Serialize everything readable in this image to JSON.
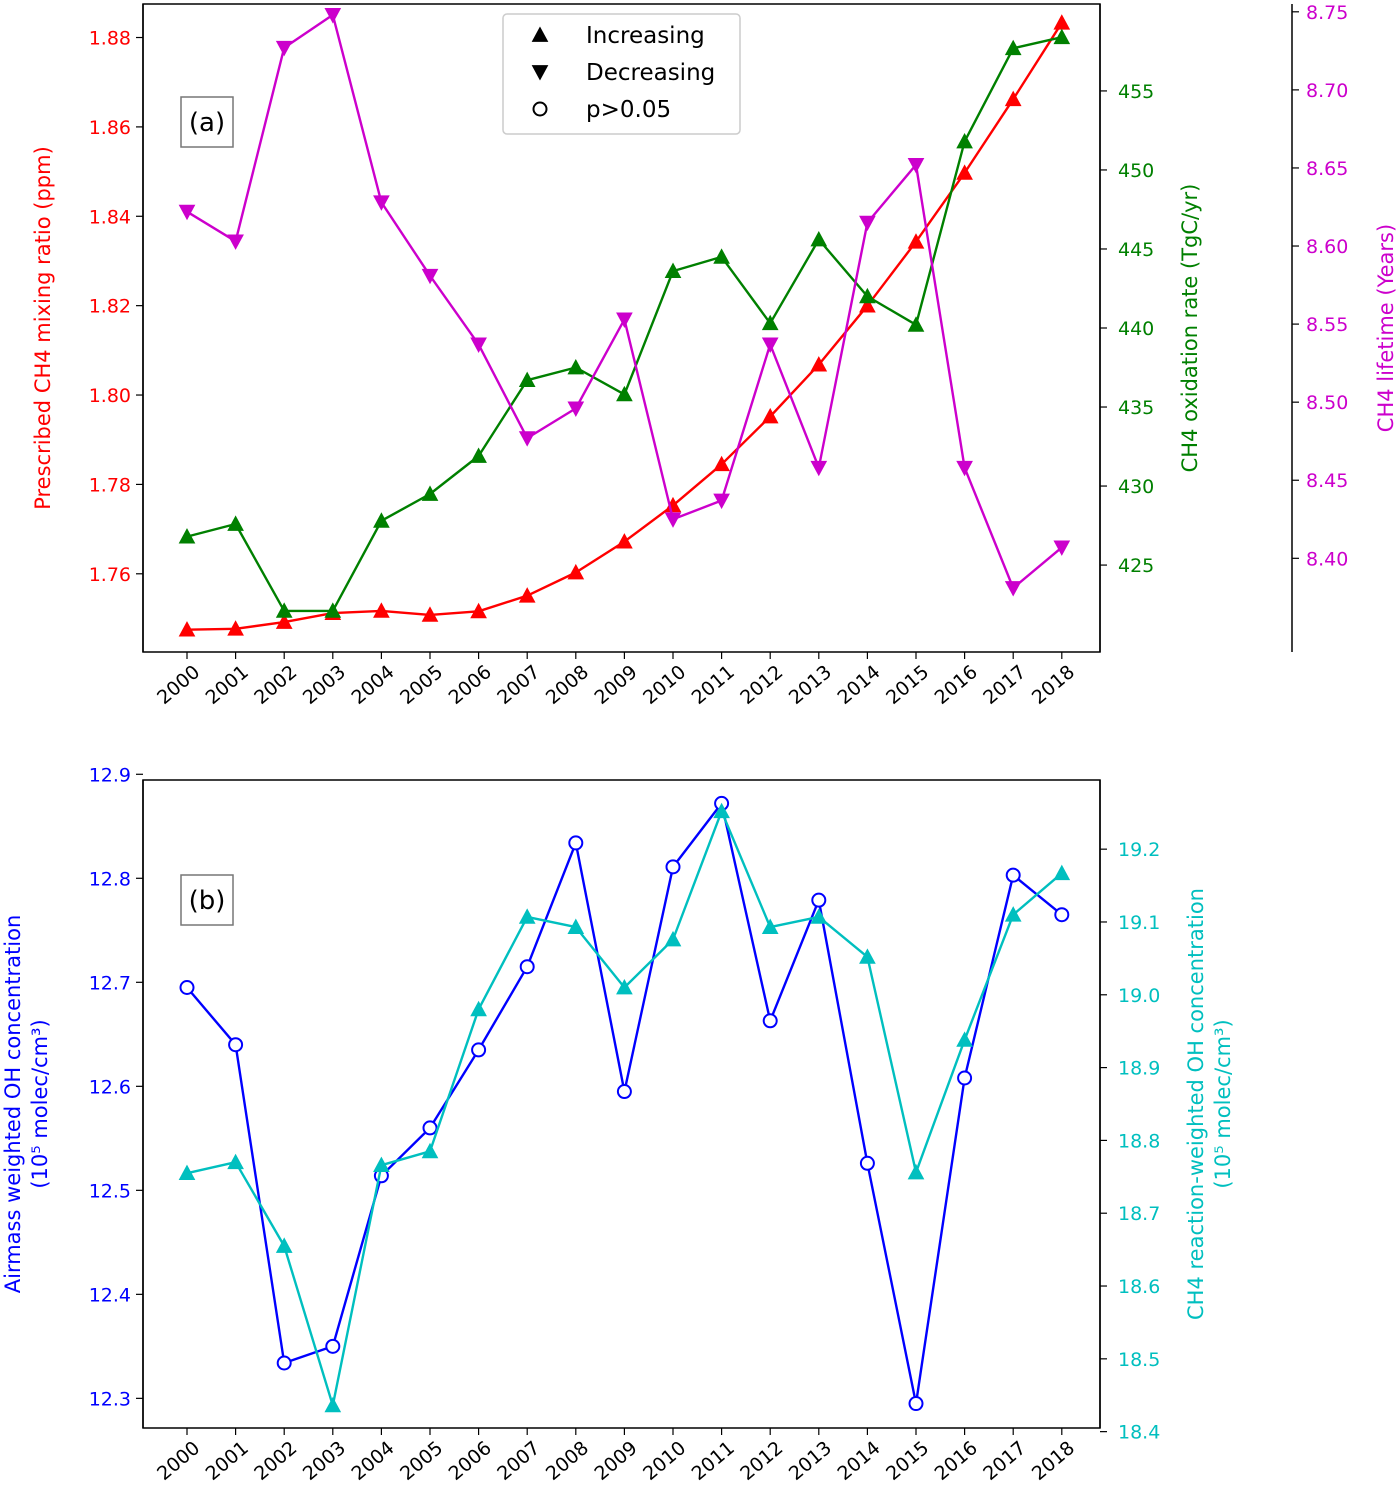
{
  "chart_data": [
    {
      "panel_label": "(a)",
      "type": "line",
      "categories": [
        "2000",
        "2001",
        "2002",
        "2003",
        "2004",
        "2005",
        "2006",
        "2007",
        "2008",
        "2009",
        "2010",
        "2011",
        "2012",
        "2013",
        "2014",
        "2015",
        "2016",
        "2017",
        "2018"
      ],
      "axes": {
        "left": {
          "label": "Prescribed CH4 mixing ratio (ppm)",
          "color": "#ff0000",
          "ylim": [
            1.7425,
            1.8875
          ],
          "ticks": [
            1.76,
            1.78,
            1.8,
            1.82,
            1.84,
            1.86,
            1.88
          ],
          "tick_labels": [
            "1.76",
            "1.78",
            "1.80",
            "1.82",
            "1.84",
            "1.86",
            "1.88"
          ]
        },
        "right": {
          "label": "CH4 oxidation rate (TgC/yr)",
          "color": "#008000",
          "ylim": [
            419.5,
            460.5
          ],
          "ticks": [
            425,
            430,
            435,
            440,
            445,
            450,
            455
          ],
          "tick_labels": [
            "425",
            "430",
            "435",
            "440",
            "445",
            "450",
            "455"
          ]
        },
        "right2": {
          "label": "CH4 lifetime (Years)",
          "color": "#cc00cc",
          "ylim": [
            8.34,
            8.755
          ],
          "ticks": [
            8.4,
            8.45,
            8.5,
            8.55,
            8.6,
            8.65,
            8.7,
            8.75
          ],
          "tick_labels": [
            "8.40",
            "8.45",
            "8.50",
            "8.55",
            "8.60",
            "8.65",
            "8.70",
            "8.75"
          ]
        }
      },
      "series": [
        {
          "axis": "left",
          "color": "#ff0000",
          "marker": "triangle-up",
          "values": [
            1.7475,
            1.7477,
            1.7492,
            1.7512,
            1.7517,
            1.7508,
            1.7516,
            1.7551,
            1.7603,
            1.7672,
            1.7753,
            1.7845,
            1.7952,
            1.8068,
            1.82,
            1.8343,
            1.8497,
            1.8662,
            1.8833
          ]
        },
        {
          "axis": "right",
          "color": "#008000",
          "marker": "triangle-up",
          "values": [
            426.8,
            427.6,
            422.1,
            422.1,
            427.8,
            429.5,
            431.9,
            436.7,
            437.5,
            435.8,
            443.6,
            444.5,
            440.3,
            445.6,
            442.0,
            440.2,
            451.8,
            457.7,
            458.4
          ]
        },
        {
          "axis": "right2",
          "color": "#cc00cc",
          "marker": "triangle-down",
          "values": [
            8.622,
            8.603,
            8.727,
            8.748,
            8.628,
            8.581,
            8.537,
            8.477,
            8.496,
            8.553,
            8.425,
            8.437,
            8.537,
            8.458,
            8.615,
            8.652,
            8.458,
            8.381,
            8.407
          ]
        }
      ],
      "legend": {
        "placement": "top-center",
        "entries": [
          {
            "marker": "triangle-up",
            "label": "Increasing"
          },
          {
            "marker": "triangle-down",
            "label": "Decreasing"
          },
          {
            "marker": "circle-open",
            "label": "p>0.05"
          }
        ]
      }
    },
    {
      "panel_label": "(b)",
      "type": "line",
      "categories": [
        "2000",
        "2001",
        "2002",
        "2003",
        "2004",
        "2005",
        "2006",
        "2007",
        "2008",
        "2009",
        "2010",
        "2011",
        "2012",
        "2013",
        "2014",
        "2015",
        "2016",
        "2017",
        "2018"
      ],
      "axes": {
        "left": {
          "label": "Airmass weighted OH concentration",
          "label_line2": "(10⁵ molec/cm³)",
          "color": "#0000ff",
          "ylim": [
            12.2715,
            12.8945
          ],
          "ticks": [
            12.3,
            12.4,
            12.5,
            12.6,
            12.7,
            12.8,
            12.9
          ],
          "tick_labels": [
            "12.3",
            "12.4",
            "12.5",
            "12.6",
            "12.7",
            "12.8",
            "12.9"
          ]
        },
        "right": {
          "label": "CH4 reaction-weighted OH concentration",
          "label_line2": "(10⁵ molec/cm³)",
          "color": "#00bfbf",
          "ylim": [
            18.405,
            19.295
          ],
          "ticks": [
            18.4,
            18.5,
            18.6,
            18.7,
            18.8,
            18.9,
            19.0,
            19.1,
            19.2
          ],
          "tick_labels": [
            "18.4",
            "18.5",
            "18.6",
            "18.7",
            "18.8",
            "18.9",
            "19.0",
            "19.1",
            "19.2"
          ]
        }
      },
      "series": [
        {
          "axis": "left",
          "color": "#0000ff",
          "marker": "circle-open",
          "values": [
            12.695,
            12.64,
            12.334,
            12.35,
            12.514,
            12.56,
            12.635,
            12.715,
            12.834,
            12.595,
            12.811,
            12.872,
            12.663,
            12.779,
            12.526,
            12.295,
            12.608,
            12.803,
            12.765
          ]
        },
        {
          "axis": "right",
          "color": "#00bfbf",
          "marker": "triangle-up",
          "values": [
            18.755,
            18.77,
            18.655,
            18.436,
            18.766,
            18.785,
            18.98,
            19.107,
            19.093,
            19.01,
            19.076,
            19.252,
            19.093,
            19.107,
            19.052,
            18.756,
            18.938,
            19.11,
            19.167
          ]
        }
      ]
    }
  ]
}
